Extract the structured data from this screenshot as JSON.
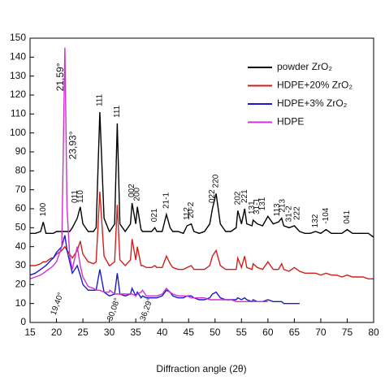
{
  "chart_data": {
    "type": "line",
    "x_label": "Diffraction angle (2θ)",
    "xlim": [
      15,
      80
    ],
    "xticks": [
      15,
      20,
      25,
      30,
      35,
      40,
      45,
      50,
      55,
      60,
      65,
      70,
      75,
      80
    ],
    "ylim": [
      0,
      150
    ],
    "yticks": [
      0,
      10,
      20,
      30,
      40,
      50,
      60,
      70,
      80,
      90,
      100,
      110,
      120,
      130,
      140,
      150
    ],
    "legend": "top-right",
    "x": [
      15,
      16,
      17,
      17.5,
      18,
      19,
      19.4,
      20,
      21,
      21.59,
      22,
      22.5,
      23,
      23.93,
      24.5,
      25,
      26,
      27,
      27.5,
      28.2,
      29,
      30,
      30.08,
      31,
      31.5,
      32,
      33,
      34,
      34.3,
      35,
      35.3,
      36,
      36.29,
      37,
      38,
      38.6,
      39,
      40,
      40.8,
      41.5,
      42,
      43,
      44,
      44.7,
      45.5,
      46,
      47,
      48,
      49,
      49.5,
      50.2,
      51,
      52,
      53,
      54,
      54.3,
      55,
      55.6,
      56,
      57,
      57.2,
      58,
      59,
      60,
      61,
      62,
      62.6,
      63,
      64,
      65,
      66,
      67,
      68,
      69,
      70,
      71,
      72,
      73,
      74,
      75,
      76,
      77,
      78,
      79,
      80
    ],
    "series": [
      {
        "name": "powder ZrO₂",
        "color": "#000000",
        "values": [
          47,
          47,
          48,
          53,
          47,
          47,
          47,
          48,
          48,
          48,
          48,
          48,
          50,
          55,
          61,
          52,
          48,
          48,
          50,
          111,
          55,
          48,
          48,
          52,
          105,
          52,
          48,
          52,
          63,
          52,
          61,
          49,
          48,
          48,
          48,
          50,
          48,
          48,
          57,
          50,
          48,
          48,
          47,
          51,
          52,
          48,
          47,
          48,
          52,
          60,
          68,
          52,
          48,
          48,
          50,
          59,
          52,
          60,
          52,
          51,
          54,
          52,
          51,
          56,
          52,
          53,
          55,
          51,
          50,
          51,
          48,
          47,
          47,
          48,
          47,
          49,
          47,
          47,
          47,
          49,
          47,
          47,
          47,
          47,
          45
        ]
      },
      {
        "name": "HDPE+20% ZrO₂",
        "color": "#d0201a",
        "values": [
          30,
          30,
          31,
          32,
          32,
          34,
          34,
          36,
          38,
          40,
          38,
          36,
          34,
          38,
          43,
          36,
          32,
          31,
          32,
          69,
          35,
          30,
          30,
          32,
          62,
          33,
          30,
          33,
          44,
          33,
          40,
          30,
          30,
          29,
          29,
          30,
          29,
          29,
          35,
          31,
          29,
          28,
          28,
          29,
          30,
          28,
          28,
          28,
          30,
          35,
          38,
          30,
          28,
          28,
          28,
          34,
          29,
          35,
          29,
          28,
          31,
          29,
          28,
          32,
          28,
          28,
          31,
          28,
          27,
          29,
          27,
          26,
          26,
          26,
          25,
          26,
          25,
          25,
          24,
          25,
          24,
          24,
          24,
          23,
          23
        ]
      },
      {
        "name": "HDPE+3% ZrO₂",
        "color": "#1a1acc",
        "values": [
          25,
          26,
          28,
          29,
          30,
          33,
          34,
          37,
          40,
          46,
          38,
          32,
          26,
          30,
          25,
          20,
          17,
          17,
          17,
          28,
          16,
          14,
          14,
          15,
          26,
          15,
          14,
          15,
          18,
          14,
          16,
          13,
          14,
          13,
          13,
          13,
          13,
          14,
          17,
          16,
          14,
          13,
          13,
          14,
          14,
          13,
          12,
          12,
          13,
          15,
          16,
          13,
          12,
          12,
          12,
          13,
          12,
          13,
          12,
          11,
          12,
          11,
          11,
          12,
          11,
          11,
          11,
          10,
          10,
          10,
          10,
          null,
          null,
          null,
          null,
          null,
          null,
          null,
          null,
          null,
          null,
          null,
          null,
          null,
          null
        ]
      },
      {
        "name": "HDPE",
        "color": "#cc33cc",
        "values": [
          23,
          24,
          25,
          26,
          27,
          29,
          30,
          32,
          40,
          145,
          60,
          35,
          28,
          40,
          30,
          24,
          19,
          18,
          17,
          17,
          16,
          16,
          17,
          15,
          15,
          15,
          15,
          15,
          15,
          14,
          15,
          16,
          17,
          14,
          14,
          14,
          14,
          15,
          18,
          16,
          15,
          14,
          14,
          14,
          13,
          13,
          13,
          13,
          12,
          12,
          12,
          12,
          12,
          12,
          11,
          11,
          11,
          11,
          11,
          11,
          11,
          11,
          11,
          11,
          null,
          null,
          null,
          null,
          null,
          null,
          null,
          null,
          null,
          null,
          null,
          null,
          null,
          null,
          null,
          null,
          null,
          null,
          null,
          null,
          null
        ]
      }
    ],
    "peak_labels": [
      {
        "text": "100",
        "x": 17.5,
        "y": 56
      },
      {
        "text": "011",
        "x": 23.5,
        "y": 63
      },
      {
        "text": "110",
        "x": 24.6,
        "y": 63
      },
      {
        "text": "111",
        "x": 28.2,
        "y": 114
      },
      {
        "text": "111",
        "x": 31.5,
        "y": 108
      },
      {
        "text": "002",
        "x": 34.3,
        "y": 66
      },
      {
        "text": "200",
        "x": 35.3,
        "y": 64
      },
      {
        "text": "021",
        "x": 38.6,
        "y": 53
      },
      {
        "text": "21-1",
        "x": 40.8,
        "y": 60
      },
      {
        "text": "112",
        "x": 44.7,
        "y": 54
      },
      {
        "text": "20-2",
        "x": 45.5,
        "y": 55
      },
      {
        "text": "022",
        "x": 49.5,
        "y": 63
      },
      {
        "text": "220",
        "x": 50.2,
        "y": 71
      },
      {
        "text": "202",
        "x": 54.3,
        "y": 62
      },
      {
        "text": "221",
        "x": 55.6,
        "y": 63
      },
      {
        "text": "131",
        "x": 57.0,
        "y": 57
      },
      {
        "text": "31-1",
        "x": 57.9,
        "y": 57
      },
      {
        "text": "131",
        "x": 59.0,
        "y": 59
      },
      {
        "text": "113",
        "x": 61.8,
        "y": 56
      },
      {
        "text": "213",
        "x": 62.8,
        "y": 58
      },
      {
        "text": "31-2",
        "x": 64.0,
        "y": 53
      },
      {
        "text": "222",
        "x": 65.5,
        "y": 54
      },
      {
        "text": "132",
        "x": 69.0,
        "y": 50
      },
      {
        "text": "-104",
        "x": 71.0,
        "y": 52
      },
      {
        "text": "041",
        "x": 75.0,
        "y": 52
      }
    ],
    "angle_labels": [
      {
        "text": "21,59°",
        "x": 20.8,
        "y": 122,
        "color": "#cc33cc"
      },
      {
        "text": "23,93°",
        "x": 23.2,
        "y": 86,
        "color": "#cc33cc"
      },
      {
        "text": "19,40°",
        "x": 19.4,
        "y": 4,
        "color": "#cc33cc"
      },
      {
        "text": "30,08°",
        "x": 30.1,
        "y": 1,
        "color": "#cc33cc"
      },
      {
        "text": "36,29°",
        "x": 36.3,
        "y": 1,
        "color": "#cc33cc"
      }
    ]
  }
}
